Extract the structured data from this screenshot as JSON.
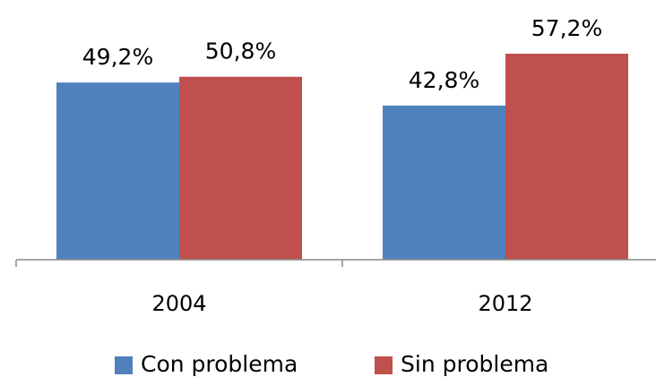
{
  "chart_data": {
    "type": "bar",
    "categories": [
      "2004",
      "2012"
    ],
    "series": [
      {
        "name": "Con problema",
        "color": "#4f81bd",
        "values": [
          49.2,
          42.8
        ],
        "value_labels": [
          "49,2%",
          "42,8%"
        ]
      },
      {
        "name": "Sin problema",
        "color": "#c0504d",
        "values": [
          50.8,
          57.2
        ],
        "value_labels": [
          "50,8%",
          "57,2%"
        ]
      }
    ],
    "legend": "bottom"
  }
}
